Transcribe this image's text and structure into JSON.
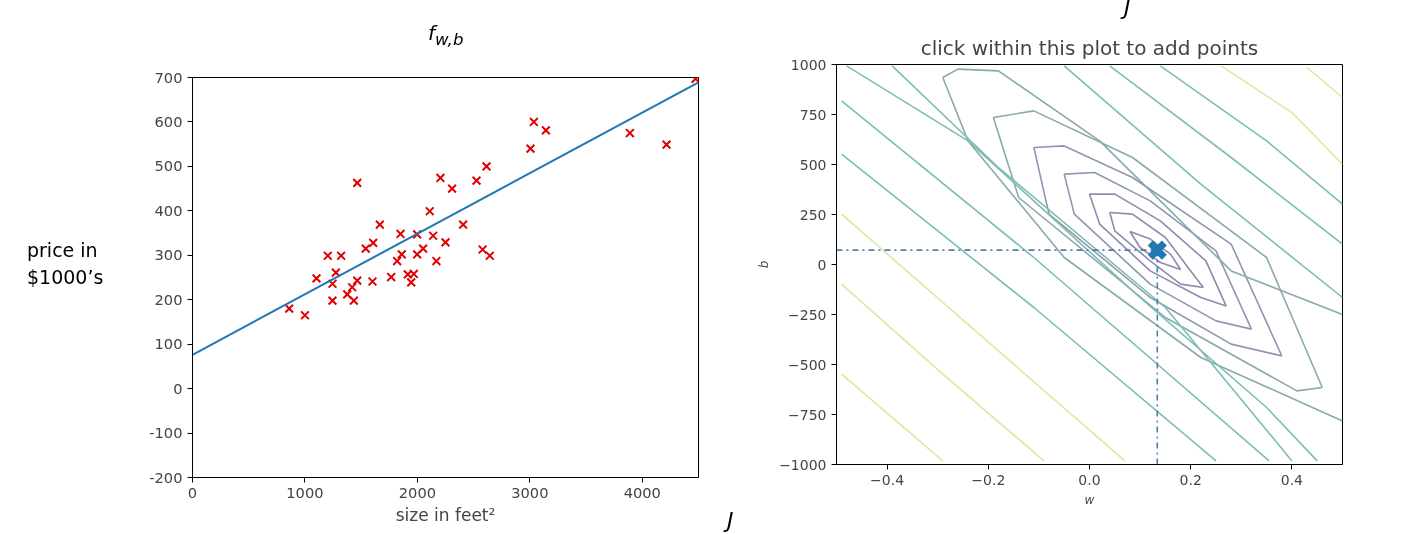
{
  "chart_data": [
    {
      "type": "scatter",
      "title": "f$_{w,b}$",
      "xlabel": "size in feet²",
      "ylabel": "price in\n$1000’s",
      "annotations": [
        "J"
      ],
      "marker": "cross",
      "xlim": [
        0,
        4500
      ],
      "xticks": [
        0,
        1000,
        2000,
        3000,
        4000
      ],
      "ylim": [
        -200,
        700
      ],
      "yticks": [
        -200,
        -100,
        0,
        100,
        200,
        300,
        400,
        500,
        600,
        700
      ],
      "series": [
        {
          "type": "scatter",
          "color": "#e00000",
          "x": [
            860,
            1000,
            1103,
            1203,
            1322,
            1275,
            1245,
            1245,
            1376,
            1435,
            1420,
            1465,
            1465,
            1541,
            1607,
            1601,
            1666,
            1767,
            1820,
            1850,
            1861,
            1915,
            1945,
            1968,
            1998,
            1998,
            2051,
            2110,
            2140,
            2169,
            2205,
            2250,
            2309,
            2407,
            2526,
            2615,
            2580,
            2644,
            3006,
            3036,
            3143,
            3890,
            4216,
            4474
          ],
          "values": [
            180,
            165,
            248,
            299,
            299,
            261,
            236,
            198,
            212,
            198,
            228,
            243,
            463,
            315,
            328,
            241,
            369,
            251,
            287,
            348,
            302,
            257,
            239,
            258,
            347,
            302,
            315,
            399,
            344,
            287,
            474,
            329,
            450,
            369,
            468,
            500,
            313,
            299,
            540,
            600,
            581,
            575,
            549,
            697
          ]
        },
        {
          "type": "line",
          "marker": "none",
          "color": "#1f77b4",
          "x": [
            0,
            4500
          ],
          "values": [
            76,
            689
          ]
        }
      ]
    },
    {
      "type": "line",
      "title": "click within this plot to add points",
      "xlabel": "w",
      "ylabel": "b",
      "annotations": [
        "J"
      ],
      "xlim": [
        -0.5,
        0.5
      ],
      "xticks": [
        {
          "value": -0.4,
          "label": "−0.4"
        },
        {
          "value": -0.2,
          "label": "−0.2"
        },
        {
          "value": 0,
          "label": "0.0"
        },
        {
          "value": 0.2,
          "label": "0.2"
        },
        {
          "value": 0.4,
          "label": "0.4"
        }
      ],
      "ylim": [
        -1000,
        1000
      ],
      "yticks": [
        {
          "value": -1000,
          "label": "−1000"
        },
        {
          "value": -750,
          "label": "−750"
        },
        {
          "value": -500,
          "label": "−500"
        },
        {
          "value": -250,
          "label": "−250"
        },
        {
          "value": 0,
          "label": "0"
        },
        {
          "value": 250,
          "label": "250"
        },
        {
          "value": 500,
          "label": "500"
        },
        {
          "value": 750,
          "label": "750"
        },
        {
          "value": 1000,
          "label": "1000"
        }
      ],
      "marker": "none",
      "series": [
        {
          "color": "#8e8aac",
          "x": [
            0.08,
            0.12,
            0.16,
            0.18
          ],
          "values": [
            165,
            127,
            52,
            -25
          ]
        },
        {
          "color": "#8e8aac",
          "x": [
            0.08,
            0.1,
            0.14,
            0.18
          ],
          "values": [
            165,
            85,
            10,
            -25
          ]
        },
        {
          "color": "#8e8aac",
          "x": [
            0.04,
            0.085,
            0.15,
            0.2,
            0.225
          ],
          "values": [
            260,
            252,
            135,
            -32,
            -115
          ]
        },
        {
          "color": "#8e8aac",
          "x": [
            0.04,
            0.05,
            0.12,
            0.18,
            0.225
          ],
          "values": [
            260,
            168,
            18,
            -98,
            -115
          ]
        },
        {
          "color": "#8e8aac",
          "x": [
            0.0,
            0.05,
            0.14,
            0.23,
            0.27
          ],
          "values": [
            352,
            352,
            218,
            18,
            -207
          ]
        },
        {
          "color": "#8e8aac",
          "x": [
            0.0,
            0.02,
            0.12,
            0.22,
            0.27
          ],
          "values": [
            352,
            202,
            -32,
            -165,
            -207
          ]
        },
        {
          "color": "#8c98b0",
          "x": [
            -0.05,
            0.01,
            0.12,
            0.25,
            0.32
          ],
          "values": [
            452,
            460,
            318,
            68,
            -323
          ]
        },
        {
          "color": "#8c98b0",
          "x": [
            -0.05,
            -0.03,
            0.12,
            0.25,
            0.32
          ],
          "values": [
            452,
            252,
            -98,
            -282,
            -323
          ]
        },
        {
          "color": "#8c98b0",
          "x": [
            -0.11,
            -0.05,
            0.085,
            0.28,
            0.38
          ],
          "values": [
            585,
            593,
            435,
            102,
            -457
          ]
        },
        {
          "color": "#8c98b0",
          "x": [
            -0.11,
            -0.08,
            0.12,
            0.28,
            0.38
          ],
          "values": [
            585,
            252,
            -165,
            -398,
            -457
          ]
        },
        {
          "color": "#88aaaa",
          "x": [
            -0.19,
            -0.11,
            0.085,
            0.35,
            0.46
          ],
          "values": [
            735,
            768,
            535,
            35,
            -615
          ]
        },
        {
          "color": "#88aaaa",
          "x": [
            -0.19,
            -0.14,
            0.15,
            0.41,
            0.46
          ],
          "values": [
            735,
            335,
            -265,
            -632,
            -615
          ]
        },
        {
          "color": "#88aaaa",
          "x": [
            -0.29,
            -0.26,
            -0.18,
            0.02,
            0.28,
            0.5
          ],
          "values": [
            935,
            977,
            968,
            618,
            -32,
            -250
          ]
        },
        {
          "color": "#88aaaa",
          "x": [
            -0.29,
            -0.24,
            -0.05,
            0.22,
            0.5
          ],
          "values": [
            935,
            618,
            35,
            -465,
            -782
          ]
        },
        {
          "color": "#7dbdb3",
          "x": [
            -0.05,
            0.22,
            0.5
          ],
          "values": [
            993,
            402,
            -165
          ]
        },
        {
          "color": "#7dbdb3",
          "x": [
            0.04,
            0.28,
            0.5
          ],
          "values": [
            993,
            535,
            102
          ]
        },
        {
          "color": "#7dbdb3",
          "x": [
            0.14,
            0.35,
            0.5
          ],
          "values": [
            993,
            618,
            302
          ]
        },
        {
          "color": "#dde8a0",
          "x": [
            0.26,
            0.4,
            0.5
          ],
          "values": [
            993,
            760,
            502
          ]
        },
        {
          "color": "#dde8a0",
          "x": [
            0.43,
            0.5
          ],
          "values": [
            985,
            835
          ]
        },
        {
          "color": "#7dbdb3",
          "x": [
            -0.48,
            -0.24,
            0.085,
            0.35,
            0.45
          ],
          "values": [
            993,
            618,
            -132,
            -715,
            -982
          ]
        },
        {
          "color": "#7dbdb3",
          "x": [
            -0.39,
            -0.18,
            0.15,
            0.4
          ],
          "values": [
            993,
            485,
            -215,
            -982
          ]
        },
        {
          "color": "#7dbdb3",
          "x": [
            -0.49,
            -0.11,
            0.355
          ],
          "values": [
            818,
            35,
            -982
          ]
        },
        {
          "color": "#7dbdb3",
          "x": [
            -0.49,
            -0.11,
            0.25
          ],
          "values": [
            552,
            -215,
            -982
          ]
        },
        {
          "color": "#dde8a0",
          "x": [
            -0.49,
            -0.18,
            0.07
          ],
          "values": [
            252,
            -432,
            -982
          ]
        },
        {
          "color": "#dde8a0",
          "x": [
            -0.49,
            -0.29,
            -0.09
          ],
          "values": [
            -98,
            -548,
            -982
          ]
        },
        {
          "color": "#dde8a0",
          "x": [
            -0.49,
            -0.29
          ],
          "values": [
            -548,
            -982
          ]
        },
        {
          "color": "#4a7fb0",
          "line_style": "dashed",
          "x": [
            -0.5,
            0.134
          ],
          "values": [
            72,
            72
          ]
        },
        {
          "color": "#4a7fb0",
          "line_style": "dashed",
          "x": [
            0.134,
            0.134
          ],
          "values": [
            -1000,
            72
          ]
        },
        {
          "type": "scatter",
          "marker": "cross",
          "color": "#1f77b4",
          "x": [
            0.134
          ],
          "values": [
            72
          ]
        }
      ]
    }
  ]
}
